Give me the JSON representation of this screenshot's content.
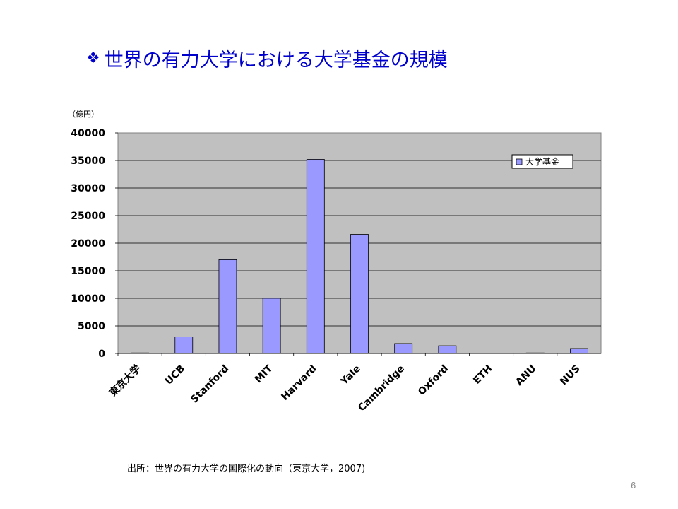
{
  "slide": {
    "bullet": "❖",
    "title": "世界の有力大学における大学基金の規模",
    "source": "出所：世界の有力大学の国際化の動向（東京大学，2007)",
    "page_number": "6"
  },
  "chart_data": {
    "type": "bar",
    "unit_label": "（億円）",
    "categories": [
      "東京大学",
      "UCB",
      "Stanford",
      "MIT",
      "Harvard",
      "Yale",
      "Cambridge",
      "Oxford",
      "ETH",
      "ANU",
      "NUS"
    ],
    "series": [
      {
        "name": "大学基金",
        "values": [
          100,
          3000,
          17000,
          10000,
          35200,
          21600,
          1800,
          1400,
          0,
          100,
          900
        ],
        "color": "#9999ff"
      }
    ],
    "ylim": [
      0,
      40000
    ],
    "yticks": [
      "0",
      "5000",
      "10000",
      "15000",
      "20000",
      "25000",
      "30000",
      "35000",
      "40000"
    ],
    "plot_background": "#c0c0c0",
    "grid": true,
    "legend_position": "top-right"
  }
}
